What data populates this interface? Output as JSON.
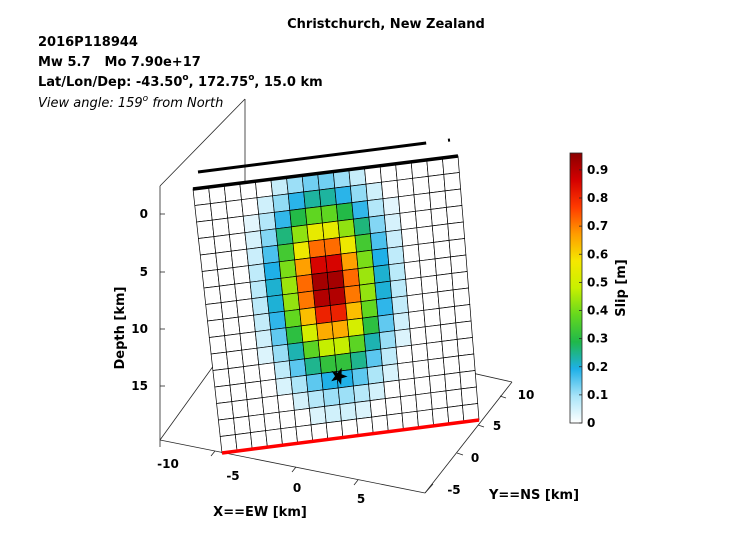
{
  "header": {
    "title": "Christchurch, New Zealand",
    "event_id": "2016P118944",
    "magnitude": "Mw 5.7",
    "moment": "Mo 7.90e+17",
    "location_prefix": "Lat/Lon/Dep: -43.50",
    "location_lon": ", 172.75",
    "location_dep": ", 15.0 km",
    "degree_mark": "o",
    "view_prefix": "View angle: 159",
    "view_suffix": " from North"
  },
  "chart_data": {
    "type": "heatmap",
    "title": "Christchurch, New Zealand",
    "xlabel": "X==EW [km]",
    "ylabel": "Y==NS [km]",
    "zlabel": "Depth [km]",
    "x_ticks": [
      "-10",
      "-5",
      "0",
      "5"
    ],
    "y_ticks": [
      "-5",
      "0",
      "5",
      "10"
    ],
    "z_ticks": [
      "0",
      "5",
      "10",
      "15"
    ],
    "colorbar": {
      "label": "Slip [m]",
      "ticks": [
        "0",
        "0.1",
        "0.2",
        "0.3",
        "0.4",
        "0.5",
        "0.6",
        "0.7",
        "0.8",
        "0.9"
      ],
      "min": 0,
      "max": 0.96
    },
    "grid_cols": 17,
    "grid_rows": 16,
    "slip_peak_m": 0.96,
    "slip_center_col": 7.5,
    "slip_center_row": 6.3,
    "slip_sigma_col": 2.0,
    "slip_sigma_row": 3.2,
    "slip_cutoff_m": 0.03,
    "hypocenter": {
      "col": 8.1,
      "row": 12.3,
      "symbol": "star"
    }
  }
}
